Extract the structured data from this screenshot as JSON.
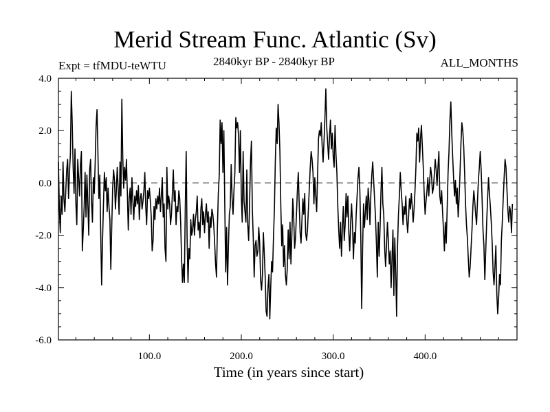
{
  "chart_data": {
    "type": "line",
    "title": "Merid Stream Func. Atlantic (Sv)",
    "subtitle_left": "Expt = tfMDU-teWTU",
    "subtitle_center": "2840kyr BP - 2840kyr BP",
    "subtitle_right": "ALL_MONTHS",
    "xlabel": "Time (in years since start)",
    "ylabel": "",
    "xlim": [
      1,
      500
    ],
    "ylim": [
      -6.0,
      4.0
    ],
    "xticks": [
      100,
      200,
      300,
      400
    ],
    "xtick_labels": [
      "100.0",
      "200.0",
      "300.0",
      "400.0"
    ],
    "yticks": [
      4.0,
      2.0,
      0.0,
      -2.0,
      -4.0,
      -6.0
    ],
    "ytick_labels": [
      "4.0",
      "2.0",
      "0.0",
      "-2.0",
      "-4.0",
      "-6.0"
    ],
    "reference_line": {
      "y": 0.0,
      "style": "dashed"
    },
    "grid": false,
    "series": [
      {
        "name": "Merid Stream Func. Atlantic",
        "x_start": 1,
        "x_step": 1,
        "values": [
          0.8,
          -1.0,
          -1.9,
          -0.5,
          -1.2,
          0.8,
          -0.6,
          -1.1,
          -0.3,
          0.5,
          0.9,
          -0.6,
          0.4,
          1.1,
          3.5,
          2.3,
          0.6,
          -0.4,
          1.3,
          -0.8,
          -1.6,
          0.9,
          0.2,
          -0.5,
          0.7,
          1.2,
          -2.6,
          -1.8,
          -0.9,
          0.4,
          -1.3,
          0.3,
          -0.8,
          -2.0,
          0.5,
          0.9,
          -0.7,
          -1.5,
          0.2,
          -0.4,
          0.8,
          2.2,
          2.8,
          1.1,
          -0.6,
          0.3,
          -1.9,
          -3.9,
          -2.2,
          -0.8,
          0.4,
          -0.3,
          0.2,
          -1.1,
          -0.2,
          -0.9,
          -1.4,
          -3.3,
          -1.7,
          -0.2,
          0.5,
          0.1,
          -1.0,
          -0.3,
          0.6,
          -0.2,
          -1.2,
          0.8,
          -0.5,
          3.2,
          1.0,
          -0.2,
          0.6,
          0.1,
          0.9,
          -0.4,
          -1.8,
          -0.6,
          -0.2,
          -1.2,
          0.2,
          -0.7,
          -1.4,
          -0.5,
          -0.9,
          -0.3,
          -0.8,
          -0.1,
          -1.4,
          -0.6,
          -0.4,
          -1.0,
          -0.7,
          -0.3,
          0.4,
          -0.9,
          -1.6,
          -0.3,
          -0.6,
          -0.2,
          -0.7,
          -1.3,
          -2.6,
          -2.2,
          -0.9,
          -1.4,
          -0.6,
          -1.0,
          -0.5,
          -0.8,
          -0.2,
          -1.1,
          -0.5,
          0.2,
          -1.3,
          -0.8,
          -2.5,
          -3.0,
          0.6,
          -1.0,
          -0.5,
          -0.8,
          -1.6,
          -1.2,
          -0.4,
          0.5,
          -0.7,
          -0.3,
          -1.6,
          -0.9,
          -1.1,
          -0.3,
          -0.6,
          -1.5,
          -2.9,
          -3.8,
          -3.1,
          -3.8,
          -1.0,
          1.2,
          -2.1,
          -3.8,
          -2.5,
          -2.9,
          -1.4,
          -2.0,
          -1.8,
          -1.2,
          -2.0,
          -1.4,
          -1.1,
          -0.5,
          -1.8,
          -1.5,
          -2.1,
          -1.0,
          -0.6,
          -1.6,
          -1.1,
          -1.9,
          -1.2,
          -0.8,
          -1.5,
          -1.1,
          -2.5,
          -1.3,
          -1.7,
          -1.0,
          -1.2,
          -1.6,
          -2.3,
          -3.1,
          -3.6,
          -1.7,
          -0.4,
          0.3,
          2.4,
          1.5,
          2.3,
          0.4,
          2.0,
          -0.8,
          -3.4,
          -1.7,
          -3.9,
          -2.4,
          -1.2,
          -0.9,
          0.7,
          -0.6,
          -1.2,
          -0.3,
          0.4,
          2.5,
          2.1,
          2.3,
          1.8,
          0.4,
          2.0,
          -0.5,
          -1.5,
          1.2,
          -0.7,
          -1.1,
          -1.5,
          0.5,
          -1.6,
          -2.2,
          -0.8,
          0.8,
          1.6,
          -1.0,
          -2.1,
          -3.6,
          -2.4,
          -2.2,
          -2.8,
          -2.6,
          -1.7,
          -2.3,
          -3.7,
          -4.1,
          -3.5,
          -1.9,
          -2.7,
          -3.6,
          -4.9,
          -5.1,
          -4.0,
          -3.5,
          -5.2,
          -4.0,
          -3.0,
          -3.4,
          -2.1,
          -1.0,
          0.8,
          2.1,
          1.5,
          3.0,
          2.3,
          1.2,
          -0.9,
          -2.4,
          -1.6,
          -3.2,
          -2.4,
          -3.5,
          -3.9,
          -3.3,
          -1.8,
          -2.9,
          -1.5,
          -3.1,
          -2.0,
          -0.6,
          -1.3,
          -2.5,
          -2.1,
          -1.2,
          -0.3,
          0.4,
          -0.8,
          -1.9,
          -2.3,
          -1.4,
          -0.6,
          -1.2,
          -0.4,
          -1.9,
          -2.2,
          -1.8,
          -1.0,
          -0.2,
          0.6,
          1.2,
          0.9,
          0.4,
          -0.8,
          0.2,
          -0.5,
          -1.1,
          0.3,
          1.7,
          2.0,
          1.8,
          2.3,
          1.4,
          0.8,
          1.6,
          2.5,
          3.6,
          2.1,
          1.5,
          0.9,
          1.8,
          2.4,
          1.3,
          1.9,
          1.0,
          0.6,
          2.2,
          1.1,
          0.4,
          -0.9,
          -1.8,
          -2.5,
          -1.5,
          -2.8,
          -1.7,
          -0.9,
          -2.2,
          -1.6,
          -0.4,
          -1.3,
          -0.5,
          -1.9,
          -2.6,
          -1.5,
          -0.8,
          -1.6,
          -2.9,
          -1.9,
          -2.3,
          -1.2,
          -0.5,
          0.2,
          0.6,
          -0.3,
          -2.0,
          -4.8,
          -2.5,
          -0.8,
          -1.7,
          -1.1,
          -0.5,
          -1.4,
          -0.2,
          -0.7,
          -1.6,
          -0.4,
          0.3,
          0.8,
          0.1,
          -0.6,
          -1.3,
          -2.3,
          -3.6,
          -1.5,
          -2.8,
          -1.7,
          -0.3,
          0.6,
          -0.8,
          -1.2,
          -2.5,
          -3.2,
          -2.4,
          -1.5,
          -2.2,
          -3.1,
          -2.6,
          -4.0,
          -2.9,
          -1.8,
          -4.3,
          -2.1,
          -3.4,
          -5.1,
          -2.4,
          -1.2,
          -0.5,
          0.4,
          -0.3,
          -0.8,
          -1.6,
          -0.9,
          -1.2,
          -0.5,
          -1.4,
          -1.9,
          -1.3,
          -0.6,
          -1.0,
          -0.4,
          -0.9,
          -1.5,
          -1.0,
          -0.3,
          0.6,
          1.9,
          1.6,
          2.1,
          0.8,
          1.7,
          2.2,
          1.4,
          0.6,
          -0.4,
          -1.2,
          -0.7,
          -0.3,
          0.2,
          -0.5,
          0.1,
          0.6,
          0.3,
          -0.4,
          -0.2,
          0.3,
          0.9,
          0.5,
          -0.1,
          0.6,
          1.2,
          -0.5,
          -0.8,
          -0.3,
          -1.1,
          -1.8,
          -2.6,
          -1.5,
          -2.3,
          -1.0,
          0.4,
          1.2,
          2.4,
          3.1,
          1.9,
          1.0,
          0.2,
          -0.5,
          0.1,
          -0.8,
          -0.2,
          -1.3,
          -0.6,
          0.4,
          1.5,
          2.3,
          2.0,
          1.4,
          0.4,
          -0.8,
          -1.6,
          -2.1,
          -2.9,
          -3.6,
          -3.2,
          -2.5,
          -1.8,
          -0.9,
          -0.3,
          -0.7,
          -1.2,
          -1.6,
          -0.7,
          0.1,
          0.6,
          1.2,
          0.5,
          -0.6,
          -1.8,
          -2.4,
          -3.7,
          -2.6,
          -1.5,
          -0.6,
          0.2,
          -0.4,
          -0.9,
          -1.5,
          -2.3,
          -3.4,
          -3.9,
          -3.2,
          -2.4,
          -4.2,
          -5.0,
          -4.4,
          -3.5,
          -3.9,
          -2.2,
          -1.5,
          -0.6,
          0.2,
          0.9,
          0.6,
          -0.2,
          -1.0,
          -1.5,
          -0.9,
          -1.1,
          -1.9,
          -0.8
        ]
      }
    ]
  }
}
